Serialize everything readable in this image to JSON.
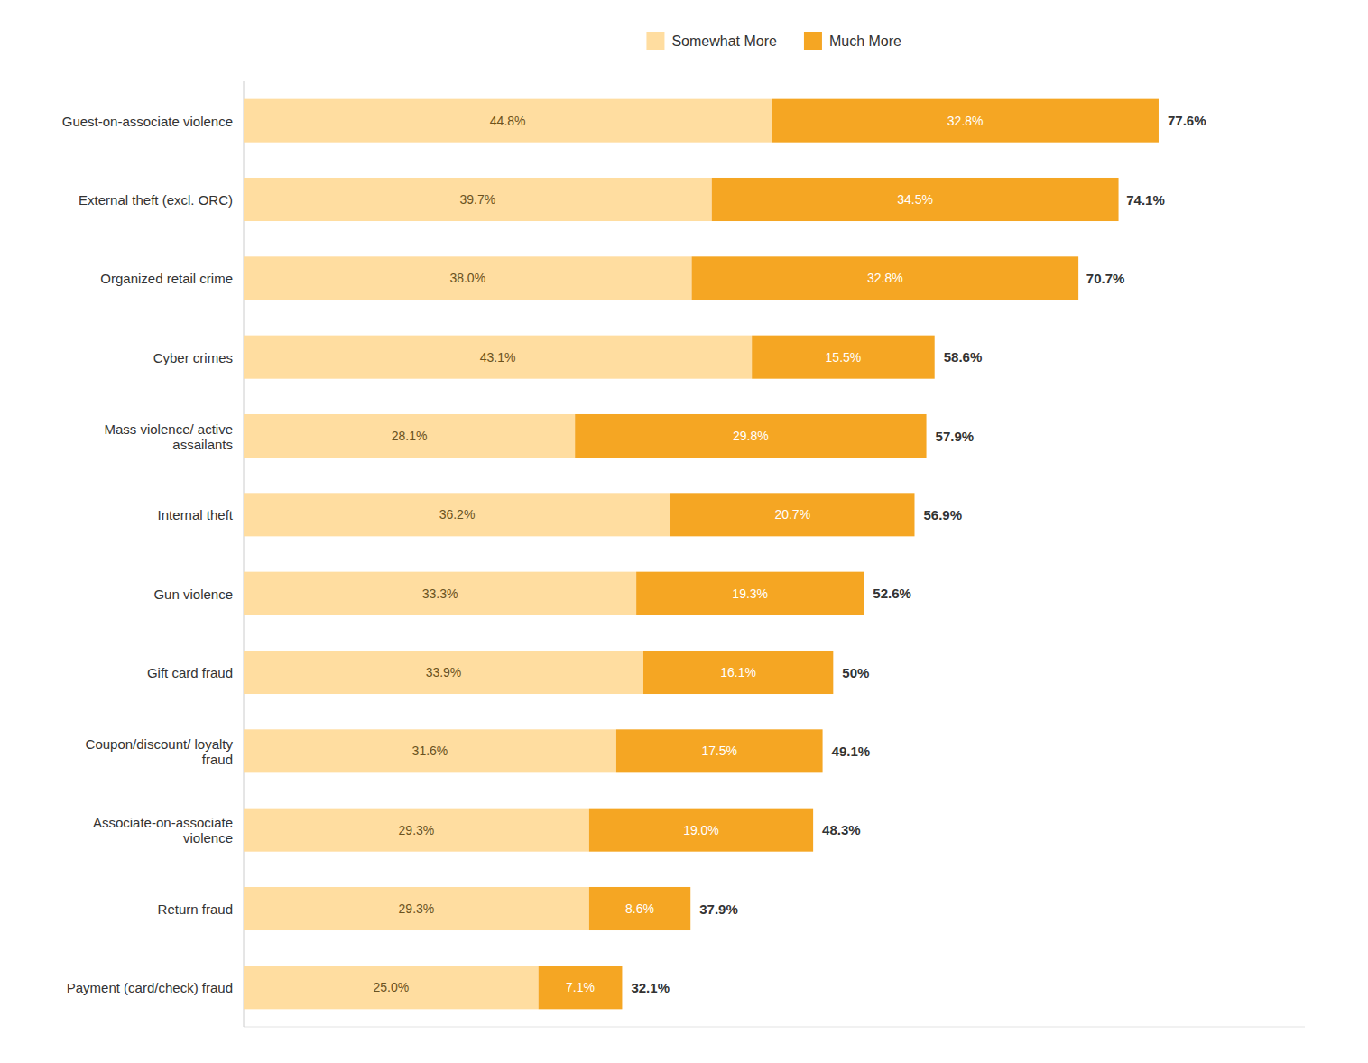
{
  "chart_data": {
    "type": "bar",
    "orientation": "horizontal",
    "stacked": true,
    "data_labels": true,
    "tick_labels": "y",
    "legend": "top",
    "categories": [
      "Guest-on-associate violence",
      "External theft (excl. ORC)",
      "Organized retail crime",
      "Cyber crimes",
      "Mass violence/ active\nassailants",
      "Internal theft",
      "Gun violence",
      "Gift card fraud",
      "Coupon/discount/ loyalty\nfraud",
      "Associate-on-associate\nviolence",
      "Return fraud",
      "Payment (card/check) fraud"
    ],
    "series": [
      {
        "name": "Somewhat More",
        "color": "#FFDDA0",
        "values": [
          44.8,
          39.7,
          38.0,
          43.1,
          28.1,
          36.2,
          33.3,
          33.9,
          31.6,
          29.3,
          29.3,
          25.0
        ],
        "value_labels": [
          "44.8%",
          "39.7%",
          "38.0%",
          "43.1%",
          "28.1%",
          "36.2%",
          "33.3%",
          "33.9%",
          "31.6%",
          "29.3%",
          "29.3%",
          "25.0%"
        ]
      },
      {
        "name": "Much More",
        "color": "#F5A623",
        "values": [
          32.8,
          34.5,
          32.8,
          15.5,
          29.8,
          20.7,
          19.3,
          16.1,
          17.5,
          19.0,
          8.6,
          7.1
        ],
        "value_labels": [
          "32.8%",
          "34.5%",
          "32.8%",
          "15.5%",
          "29.8%",
          "20.7%",
          "19.3%",
          "16.1%",
          "17.5%",
          "19.0%",
          "8.6%",
          "7.1%"
        ]
      }
    ],
    "totals": [
      77.6,
      74.1,
      70.7,
      58.6,
      57.9,
      56.9,
      52.6,
      50,
      49.1,
      48.3,
      37.9,
      32.1
    ],
    "total_labels": [
      "77.6%",
      "74.1%",
      "70.7%",
      "58.6%",
      "57.9%",
      "56.9%",
      "52.6%",
      "50%",
      "49.1%",
      "48.3%",
      "37.9%",
      "32.1%"
    ],
    "xlim": [
      0,
      90
    ]
  }
}
